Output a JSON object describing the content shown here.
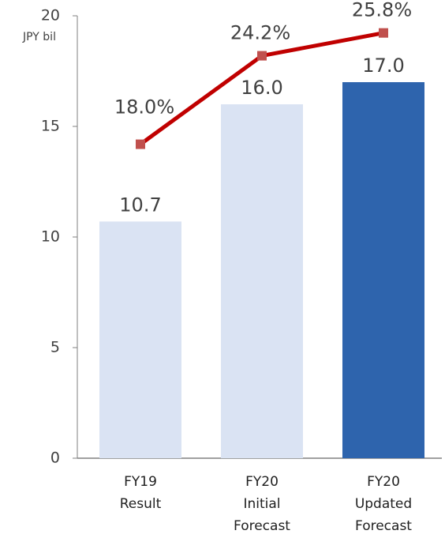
{
  "chart_data": {
    "type": "combo",
    "y_label": "JPY bil",
    "categories": [
      "FY19\nResult",
      "FY20\nInitial\nForecast",
      "FY20\nUpdated\nForecast"
    ],
    "ylim": [
      0,
      20
    ],
    "yticks": [
      0,
      5,
      10,
      15,
      20
    ],
    "y2lim": [
      -4,
      27
    ],
    "series": [
      {
        "type": "bar",
        "values": [
          10.7,
          16.0,
          17.0
        ],
        "value_labels": [
          "10.7",
          "16.0",
          "17.0"
        ],
        "colors": [
          "#dae3f3",
          "#dae3f3",
          "#2e64ad"
        ]
      },
      {
        "type": "line",
        "axis": "y2",
        "values": [
          18.0,
          24.2,
          25.8
        ],
        "value_labels": [
          "18.0%",
          "24.2%",
          "25.8%"
        ],
        "color": "#c00000",
        "marker_color": "#c0504d"
      }
    ]
  }
}
